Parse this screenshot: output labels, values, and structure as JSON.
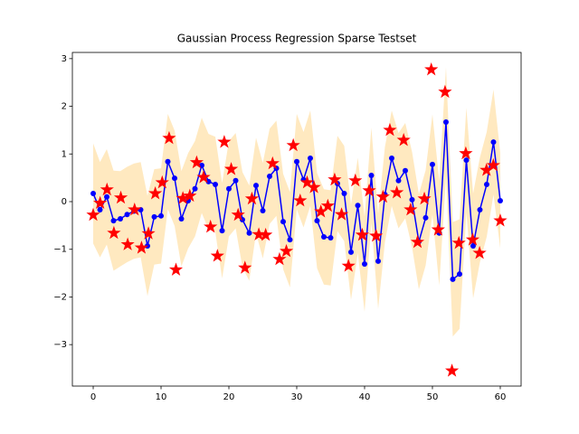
{
  "chart_data": {
    "type": "line",
    "title": "Gaussian Process Regression Sparse Testset",
    "xlim": [
      -3.07,
      63.07
    ],
    "ylim": [
      -3.87,
      3.13
    ],
    "xticks": [
      0,
      10,
      20,
      30,
      40,
      50,
      60
    ],
    "yticks": [
      {
        "value": -3,
        "label": "−3"
      },
      {
        "value": -2,
        "label": "−2"
      },
      {
        "value": -1,
        "label": "−1"
      },
      0,
      1,
      2,
      3
    ],
    "series": [
      {
        "type": "line",
        "color": "#0000ff",
        "band_color": "#ffe4b0",
        "x": [
          0,
          1,
          2,
          3,
          4,
          5,
          6,
          7,
          8,
          9,
          10,
          11,
          12,
          13,
          14,
          15,
          16,
          17,
          18,
          19,
          20,
          21,
          22,
          23,
          24,
          25,
          26,
          27,
          28,
          29,
          30,
          31,
          32,
          33,
          34,
          35,
          36,
          37,
          38,
          39,
          40,
          41,
          42,
          43,
          44,
          45,
          46,
          47,
          48,
          49,
          50,
          51,
          52,
          53,
          54,
          55,
          56,
          57,
          58,
          59,
          60
        ],
        "values": [
          0.17,
          -0.17,
          0.1,
          -0.4,
          -0.36,
          -0.27,
          -0.2,
          -0.17,
          -0.93,
          -0.32,
          -0.3,
          0.84,
          0.49,
          -0.36,
          0.02,
          0.27,
          0.76,
          0.42,
          0.36,
          -0.61,
          0.27,
          0.44,
          -0.38,
          -0.66,
          0.34,
          -0.19,
          0.53,
          0.7,
          -0.42,
          -0.8,
          0.84,
          0.46,
          0.91,
          -0.4,
          -0.74,
          -0.76,
          0.38,
          0.17,
          -1.06,
          -0.08,
          -1.31,
          0.55,
          -1.25,
          0.15,
          0.91,
          0.44,
          0.65,
          0.04,
          -0.84,
          -0.34,
          0.78,
          -0.66,
          1.67,
          -1.63,
          -1.52,
          0.87,
          -0.93,
          -0.17,
          0.36,
          1.25,
          0.02
        ],
        "band": [
          1.05,
          1.0,
          1.0,
          1.05,
          1.0,
          1.0,
          1.0,
          1.0,
          1.05,
          1.0,
          1.0,
          1.0,
          1.0,
          1.0,
          1.0,
          1.0,
          1.0,
          1.0,
          1.0,
          1.0,
          1.0,
          1.0,
          1.0,
          1.0,
          1.0,
          1.0,
          1.0,
          1.0,
          1.0,
          1.0,
          1.0,
          1.0,
          1.0,
          1.0,
          1.0,
          1.0,
          1.0,
          1.0,
          1.0,
          1.0,
          1.0,
          1.0,
          1.0,
          1.0,
          1.0,
          1.0,
          1.0,
          1.0,
          1.0,
          1.0,
          1.05,
          1.1,
          1.15,
          1.2,
          1.15,
          1.1,
          1.1,
          1.1,
          1.1,
          1.1,
          1.0
        ]
      },
      {
        "type": "scatter",
        "color": "#ff0000",
        "marker": "star",
        "x": [
          0,
          1.02,
          2.03,
          3.05,
          4.07,
          5.08,
          6.1,
          7.12,
          8.14,
          9.15,
          10.17,
          11.19,
          12.2,
          13.22,
          14.24,
          15.25,
          16.27,
          17.29,
          18.31,
          19.32,
          20.34,
          21.36,
          22.37,
          23.39,
          24.41,
          25.42,
          26.44,
          27.46,
          28.47,
          29.49,
          30.51,
          31.53,
          32.54,
          33.56,
          34.58,
          35.59,
          36.61,
          37.63,
          38.64,
          39.66,
          40.68,
          41.69,
          42.71,
          43.73,
          44.75,
          45.76,
          46.78,
          47.8,
          48.81,
          49.83,
          50.85,
          51.86,
          52.88,
          53.9,
          54.92,
          55.93,
          56.95,
          57.97,
          58.98,
          60
        ],
        "values": [
          -0.28,
          -0.03,
          0.25,
          -0.66,
          0.08,
          -0.9,
          -0.17,
          -0.97,
          -0.67,
          0.17,
          0.4,
          1.33,
          -1.43,
          0.07,
          0.12,
          0.82,
          0.51,
          -0.53,
          -1.14,
          1.25,
          0.68,
          -0.28,
          -1.39,
          0.06,
          -0.69,
          -0.7,
          0.8,
          -1.21,
          -1.04,
          1.18,
          0.02,
          0.4,
          0.3,
          -0.21,
          -0.09,
          0.46,
          -0.27,
          -1.35,
          0.44,
          -0.7,
          0.23,
          -0.72,
          0.1,
          1.5,
          0.19,
          1.29,
          -0.17,
          -0.85,
          0.06,
          2.77,
          -0.59,
          2.3,
          -3.55,
          -0.87,
          1.01,
          -0.8,
          -1.08,
          0.66,
          0.76,
          -0.4
        ]
      }
    ]
  }
}
